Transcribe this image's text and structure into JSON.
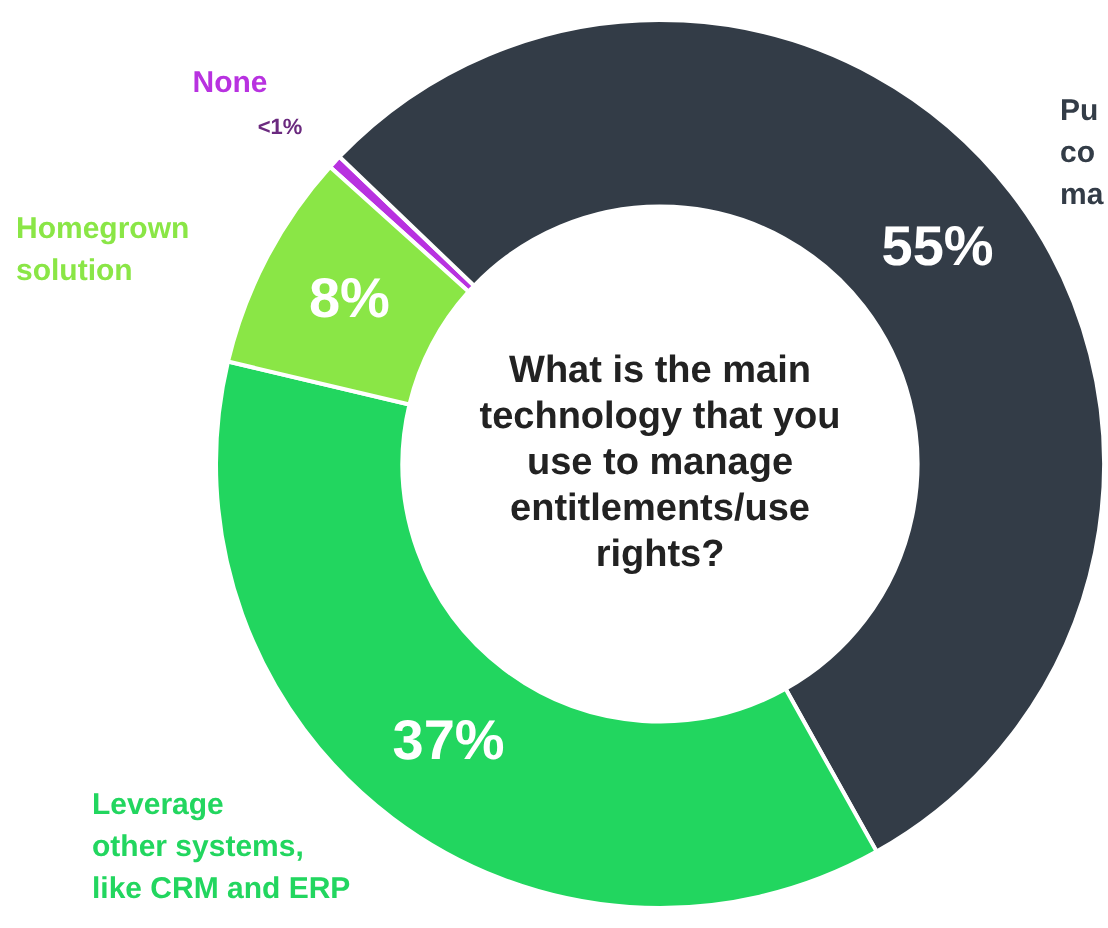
{
  "chart_data": {
    "type": "donut",
    "title": "What is the main technology that you use to manage entitlements/use rights?",
    "categories": [
      "None",
      "Pu\nco\nma",
      "Leverage\nother systems,\nlike CRM and ERP",
      "Homegrown\nsolution"
    ],
    "values": [
      0.5,
      55,
      37,
      8
    ],
    "value_labels": [
      "<1%",
      "55%",
      "37%",
      "8%"
    ],
    "colors": [
      "#b832e0",
      "#333c47",
      "#22d65f",
      "#8ae646"
    ]
  }
}
